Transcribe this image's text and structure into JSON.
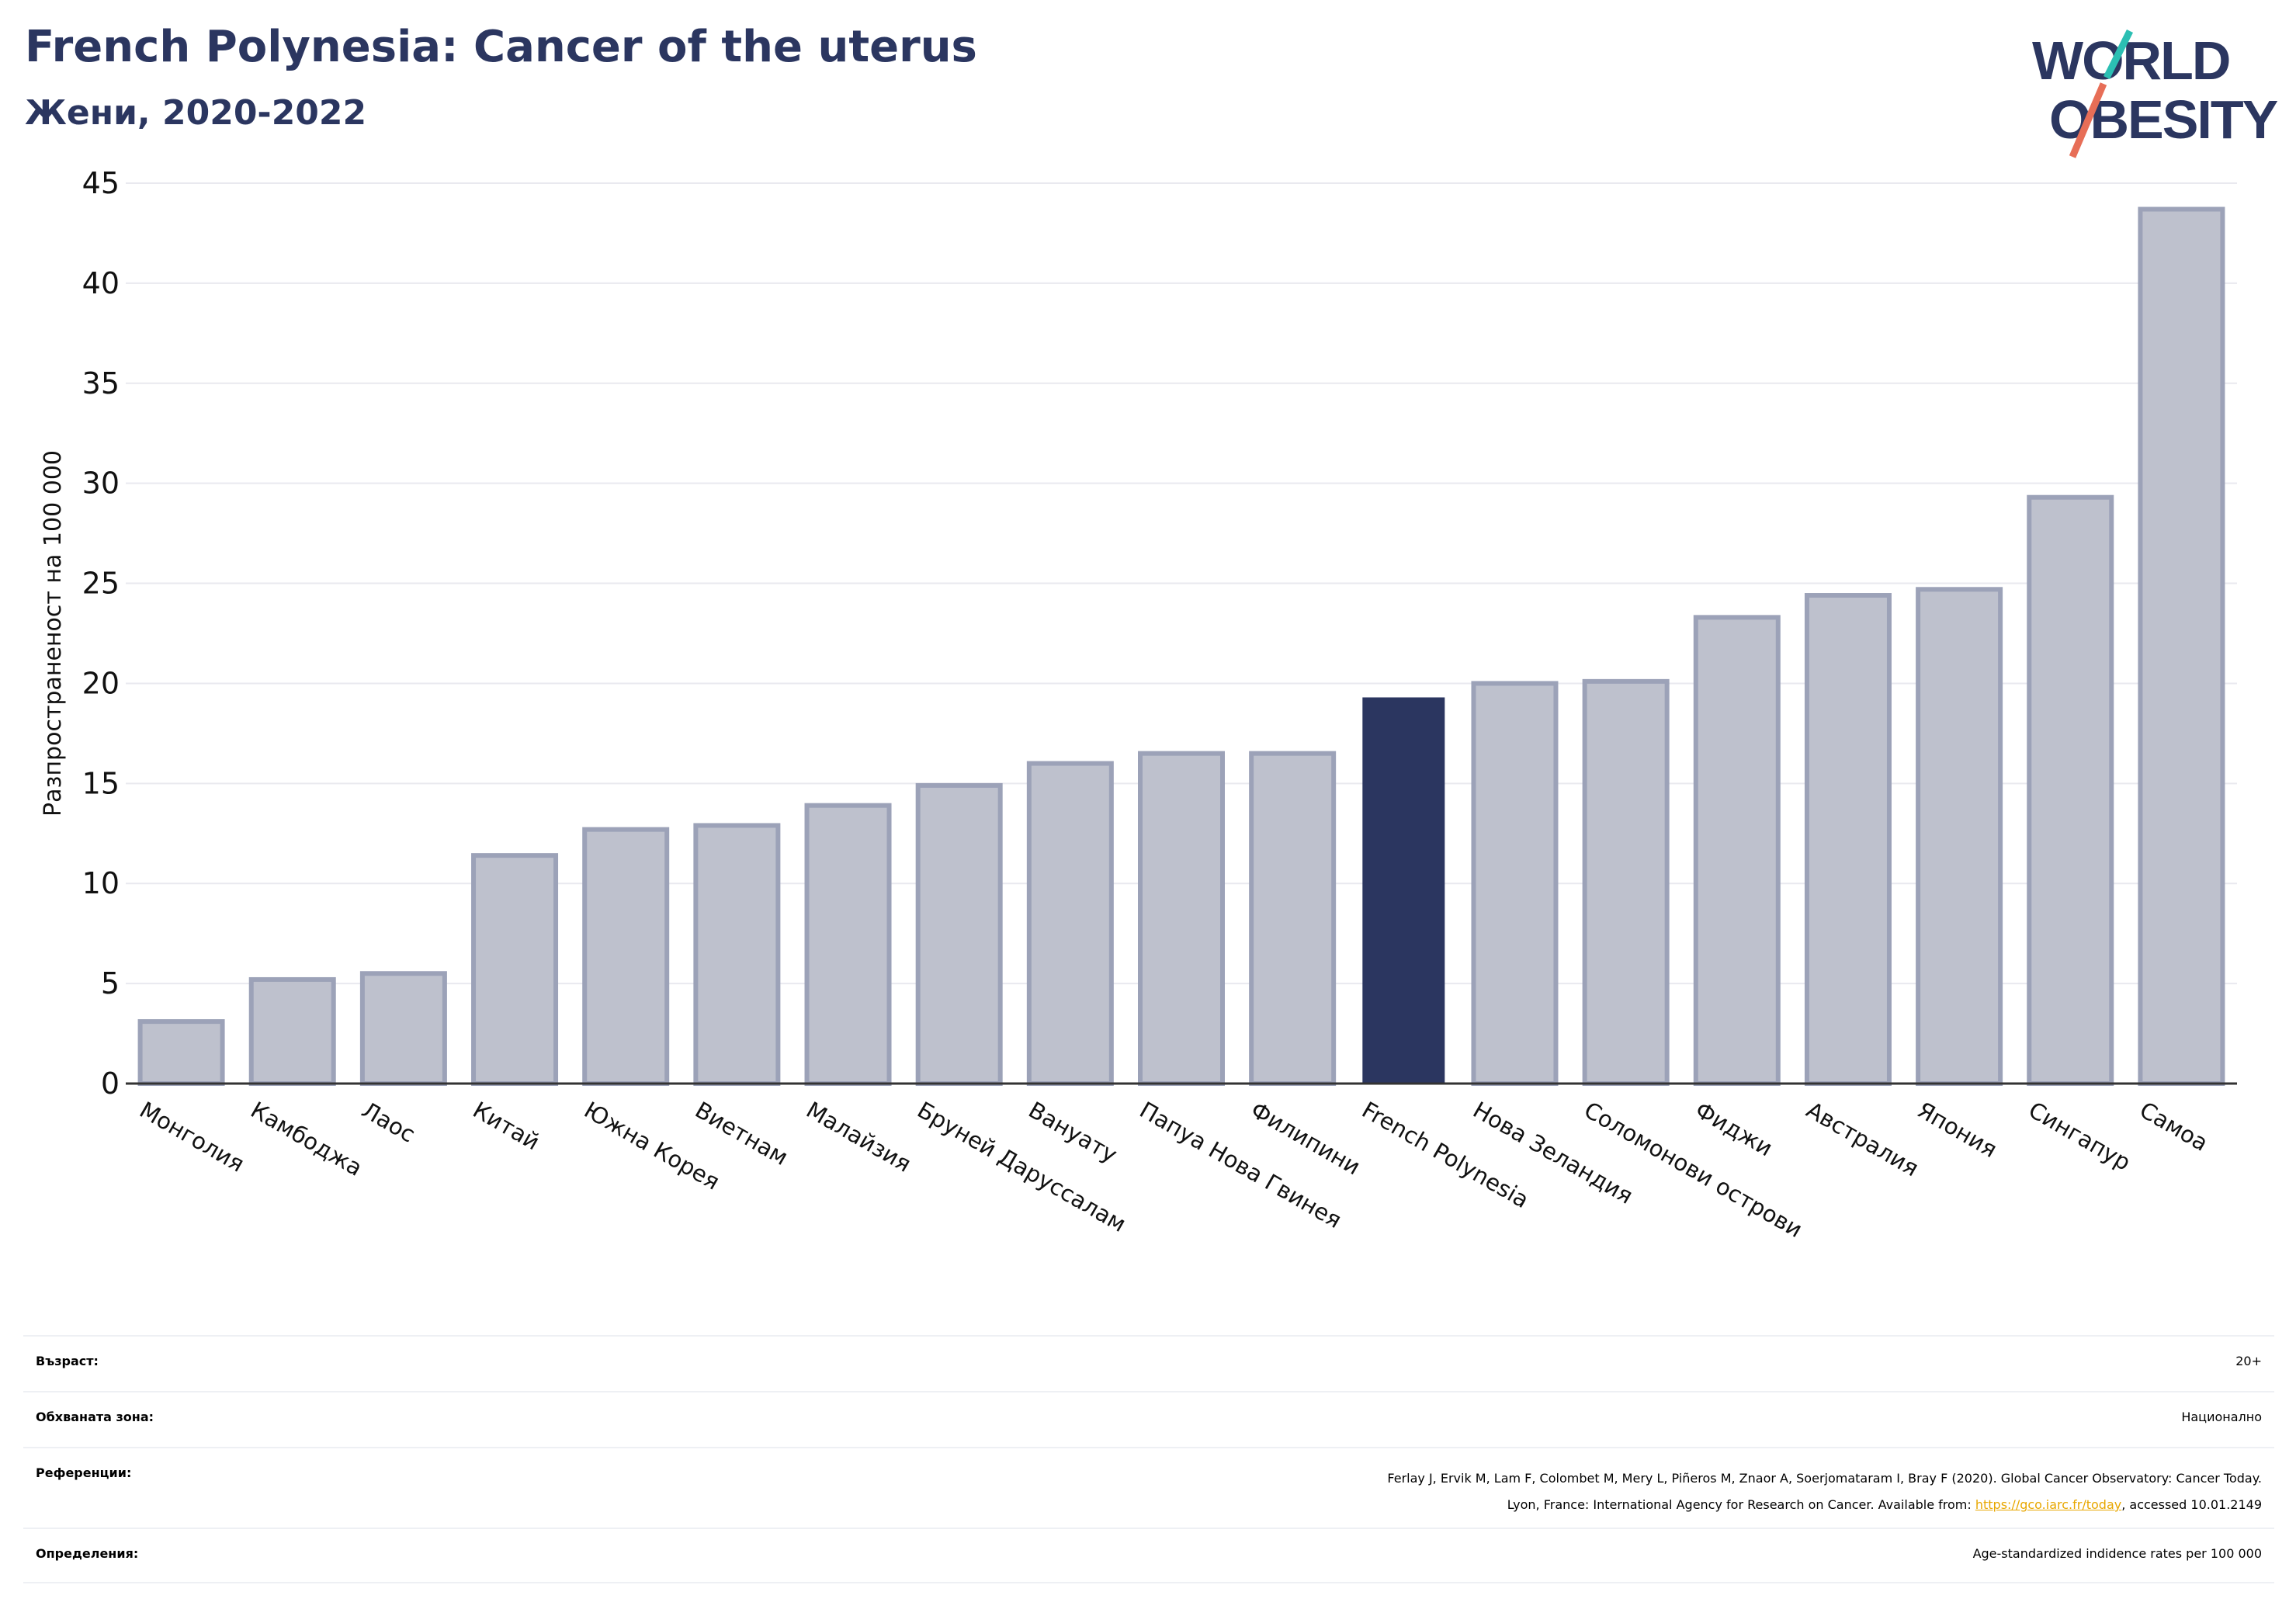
{
  "header": {
    "title": "French Polynesia: Cancer of the uterus",
    "subtitle": "Жени, 2020-2022"
  },
  "logo": {
    "line1": "WORLD",
    "line2": "OBESITY",
    "colors": {
      "text": "#2b3660",
      "slash_teal": "#2bbfb3",
      "slash_coral": "#e76e57"
    }
  },
  "chart_data": {
    "type": "bar",
    "title": "",
    "xlabel": "",
    "ylabel": "Разпространеност  на 100 000",
    "ylim": [
      0,
      45
    ],
    "yticks": [
      0,
      5,
      10,
      15,
      20,
      25,
      30,
      35,
      40,
      45
    ],
    "grid": true,
    "highlight": "French Polynesia",
    "colors": {
      "bar": "#bec1cd",
      "bar_edge": "#9ca2b8",
      "highlight": "#2b3660",
      "grid": "#e9e9ef",
      "axis": "#333333"
    },
    "categories": [
      "Монголия",
      "Камбоджа",
      "Лаос",
      "Китай",
      "Южна Корея",
      "Виетнам",
      "Малайзия",
      "Бруней Даруссалам",
      "Вануату",
      "Папуа Нова Гвинея",
      "Филипини",
      "French Polynesia",
      "Нова Зеландия",
      "Соломонови острови",
      "Фиджи",
      "Австралия",
      "Япония",
      "Сингапур",
      "Самоа"
    ],
    "values": [
      3.1,
      5.2,
      5.5,
      11.4,
      12.7,
      12.9,
      13.9,
      14.9,
      16.0,
      16.5,
      16.5,
      19.3,
      20.0,
      20.1,
      23.3,
      24.4,
      24.7,
      29.3,
      43.7
    ]
  },
  "info": {
    "age_label": "Възраст:",
    "age_value": "20+",
    "area_label": "Обхваната зона:",
    "area_value": "Национално",
    "ref_label": "Референции:",
    "ref_line1": "Ferlay J, Ervik M, Lam F, Colombet M, Mery L, Piñeros M, Znaor A, Soerjomataram I, Bray F (2020). Global Cancer Observatory: Cancer Today.",
    "ref_line2_prefix": "Lyon, France: International Agency for Research on Cancer. Available from: ",
    "ref_link": "https://gco.iarc.fr/today",
    "ref_line2_suffix": ", accessed 10.01.2149",
    "def_label": "Определения:",
    "def_value": "Age-standardized indidence rates per 100 000"
  }
}
